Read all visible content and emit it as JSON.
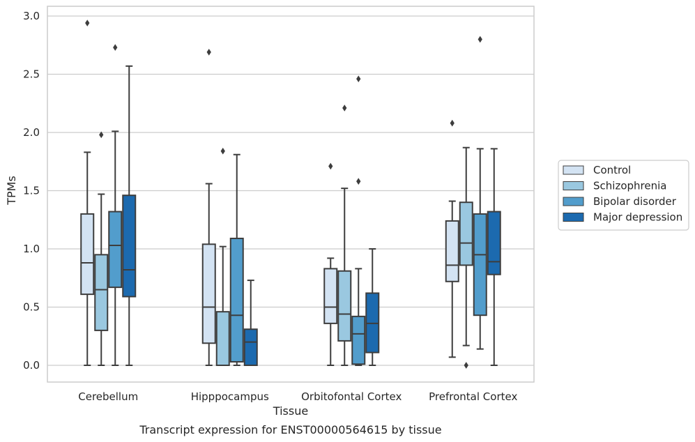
{
  "chart_data": {
    "type": "box",
    "title": "",
    "xlabel": "Tissue",
    "ylabel": "TPMs",
    "caption": "Transcript expression for ENST00000564615 by tissue",
    "ylim": [
      -0.14,
      3.08
    ],
    "yticks": [
      "0.0",
      "0.5",
      "1.0",
      "1.5",
      "2.0",
      "2.5",
      "3.0"
    ],
    "grid": true,
    "legend_position": "right",
    "categories": [
      "Cerebellum",
      "Hipppocampus",
      "Orbitofontal Cortex",
      "Prefrontal Cortex"
    ],
    "series": [
      {
        "name": "Control",
        "color": "#d3e3f3",
        "boxes": [
          {
            "whislo": 0.0,
            "q1": 0.61,
            "med": 0.88,
            "q3": 1.3,
            "whishi": 1.83,
            "fliers": [
              2.94
            ]
          },
          {
            "whislo": 0.0,
            "q1": 0.19,
            "med": 0.5,
            "q3": 1.04,
            "whishi": 1.56,
            "fliers": [
              2.69
            ]
          },
          {
            "whislo": 0.0,
            "q1": 0.36,
            "med": 0.5,
            "q3": 0.83,
            "whishi": 0.92,
            "fliers": [
              1.71
            ]
          },
          {
            "whislo": 0.07,
            "q1": 0.72,
            "med": 0.86,
            "q3": 1.24,
            "whishi": 1.41,
            "fliers": [
              2.08
            ]
          }
        ]
      },
      {
        "name": "Schizophrenia",
        "color": "#9ac8e0",
        "boxes": [
          {
            "whislo": 0.0,
            "q1": 0.3,
            "med": 0.65,
            "q3": 0.95,
            "whishi": 1.47,
            "fliers": [
              1.98
            ]
          },
          {
            "whislo": 0.0,
            "q1": 0.0,
            "med": 0.0,
            "q3": 0.46,
            "whishi": 1.02,
            "fliers": [
              1.84
            ]
          },
          {
            "whislo": 0.0,
            "q1": 0.21,
            "med": 0.44,
            "q3": 0.81,
            "whishi": 1.52,
            "fliers": [
              2.21
            ]
          },
          {
            "whislo": 0.17,
            "q1": 0.86,
            "med": 1.05,
            "q3": 1.4,
            "whishi": 1.87,
            "fliers": [
              0.0
            ]
          }
        ]
      },
      {
        "name": "Bipolar disorder",
        "color": "#529dcc",
        "boxes": [
          {
            "whislo": 0.0,
            "q1": 0.67,
            "med": 1.03,
            "q3": 1.32,
            "whishi": 2.01,
            "fliers": [
              2.73
            ]
          },
          {
            "whislo": 0.0,
            "q1": 0.03,
            "med": 0.43,
            "q3": 1.09,
            "whishi": 1.81,
            "fliers": []
          },
          {
            "whislo": 0.0,
            "q1": 0.01,
            "med": 0.27,
            "q3": 0.42,
            "whishi": 0.83,
            "fliers": [
              1.58,
              2.46
            ]
          },
          {
            "whislo": 0.14,
            "q1": 0.43,
            "med": 0.95,
            "q3": 1.3,
            "whishi": 1.86,
            "fliers": [
              2.8
            ]
          }
        ]
      },
      {
        "name": "Major depression",
        "color": "#1c6aaf",
        "boxes": [
          {
            "whislo": 0.0,
            "q1": 0.59,
            "med": 0.82,
            "q3": 1.46,
            "whishi": 2.57,
            "fliers": []
          },
          {
            "whislo": 0.0,
            "q1": 0.0,
            "med": 0.2,
            "q3": 0.31,
            "whishi": 0.73,
            "fliers": []
          },
          {
            "whislo": 0.0,
            "q1": 0.11,
            "med": 0.36,
            "q3": 0.62,
            "whishi": 1.0,
            "fliers": []
          },
          {
            "whislo": 0.0,
            "q1": 0.78,
            "med": 0.89,
            "q3": 1.32,
            "whishi": 1.86,
            "fliers": []
          }
        ]
      }
    ]
  }
}
